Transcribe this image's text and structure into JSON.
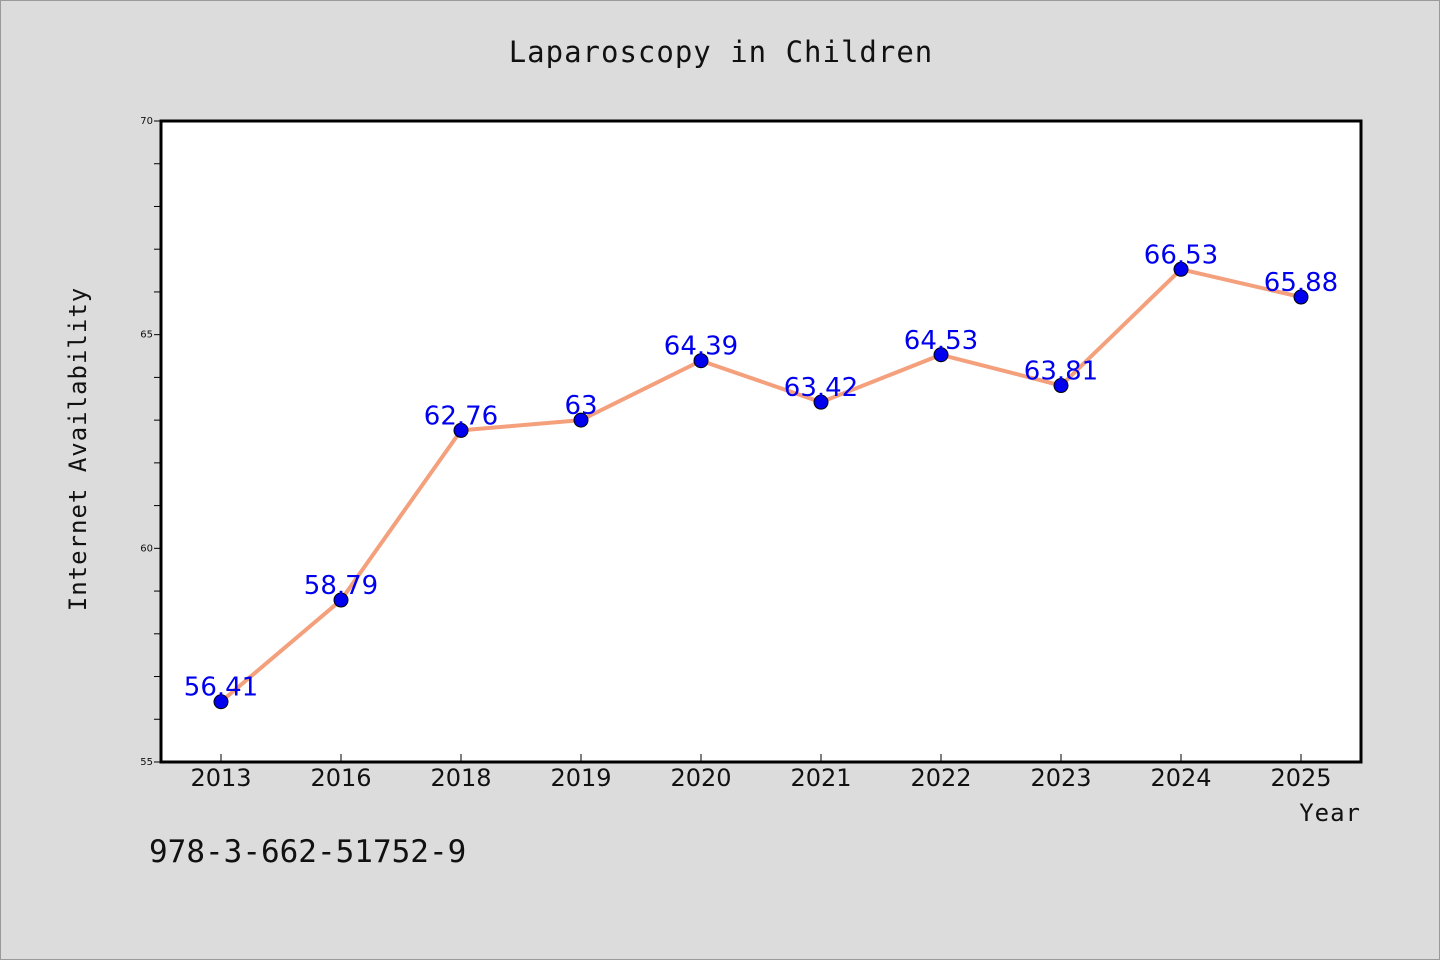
{
  "chart_data": {
    "type": "line",
    "title": "Laparoscopy in Children",
    "xlabel": "Year",
    "ylabel": "Internet Availability",
    "categories": [
      "2013",
      "2016",
      "2018",
      "2019",
      "2020",
      "2021",
      "2022",
      "2023",
      "2024",
      "2025"
    ],
    "values": [
      56.41,
      58.79,
      62.76,
      63,
      64.39,
      63.42,
      64.53,
      63.81,
      66.53,
      65.88
    ],
    "value_labels": [
      "56.41",
      "58.79",
      "62.76",
      "63",
      "64.39",
      "63.42",
      "64.53",
      "63.81",
      "66.53",
      "65.88"
    ],
    "ylim": [
      55,
      70
    ],
    "y_ticks": [
      "55",
      "60",
      "65",
      "70"
    ],
    "grid": false,
    "legend": "none",
    "colors": {
      "line": "#f4a07c",
      "marker": "#0000ee",
      "label": "#0000ee",
      "plot_bg": "#ffffff",
      "page_bg": "#dcdcdc"
    }
  },
  "footer": {
    "id_text": "978-3-662-51752-9"
  }
}
